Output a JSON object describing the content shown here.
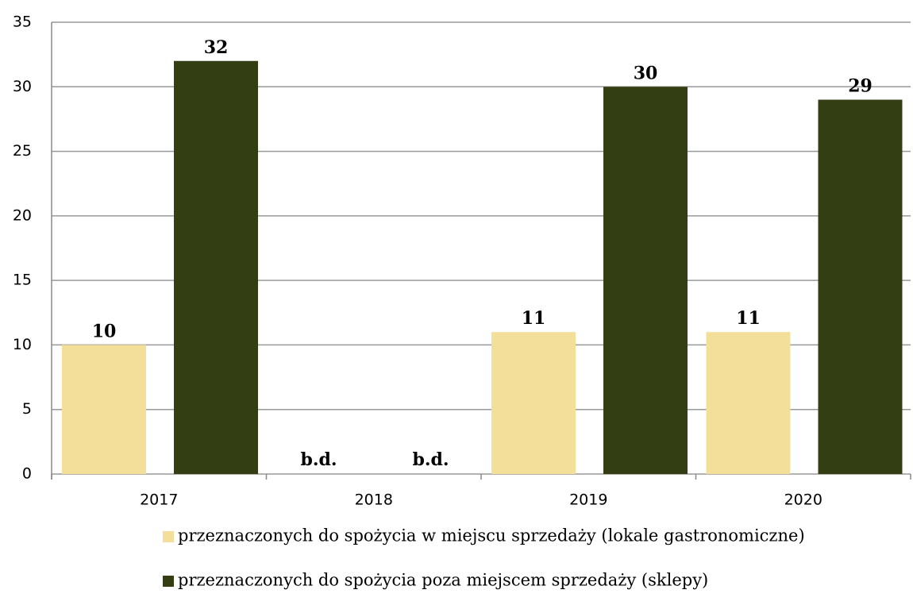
{
  "chart_data": {
    "type": "bar",
    "categories": [
      "2017",
      "2018",
      "2019",
      "2020"
    ],
    "series": [
      {
        "name": "przeznaczonych do spożycia w miejscu sprzedaży (lokale gastronomiczne)",
        "color": "#f3df9a",
        "values": [
          10,
          null,
          11,
          11
        ],
        "value_labels": [
          "10",
          "b.d.",
          "11",
          "11"
        ]
      },
      {
        "name": "przeznaczonych do spożycia poza miejscem sprzedaży (sklepy)",
        "color": "#333f13",
        "values": [
          32,
          null,
          30,
          29
        ],
        "value_labels": [
          "32",
          "b.d.",
          "30",
          "29"
        ]
      }
    ],
    "ylim": [
      0,
      35
    ],
    "yticks": [
      0,
      5,
      10,
      15,
      20,
      25,
      30,
      35
    ],
    "grid": true,
    "legend": "bottom"
  }
}
